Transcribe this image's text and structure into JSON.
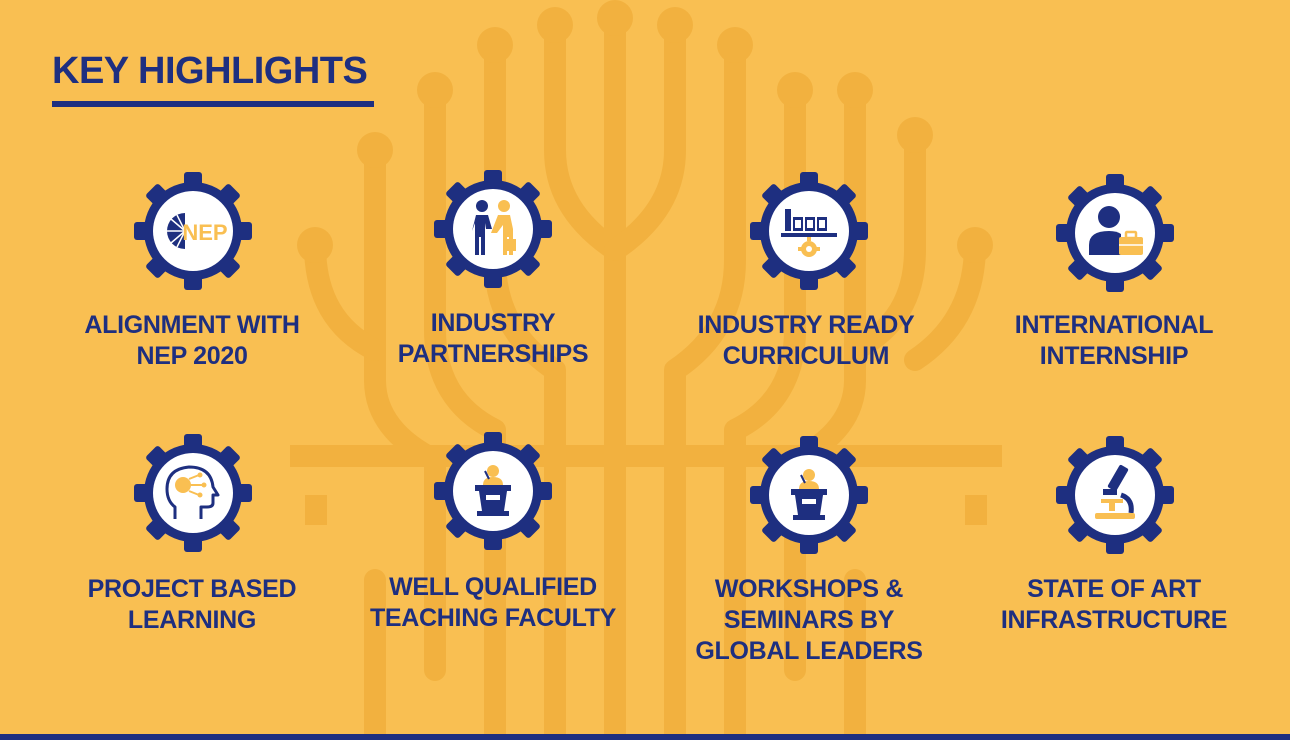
{
  "title": "KEY HIGHLIGHTS",
  "colors": {
    "background": "#f9bf52",
    "primary": "#1e2f80",
    "accent": "#f9bf52",
    "watermark": "#f0b040"
  },
  "highlights": [
    {
      "icon": "nep-logo-icon",
      "logo_text": "NEP",
      "lines": [
        "ALIGNMENT WITH",
        "NEP 2020"
      ]
    },
    {
      "icon": "handshake-icon",
      "lines": [
        "INDUSTRY",
        "PARTNERSHIPS"
      ]
    },
    {
      "icon": "factory-icon",
      "lines": [
        "INDUSTRY READY",
        "CURRICULUM"
      ]
    },
    {
      "icon": "intern-briefcase-icon",
      "lines": [
        "INTERNATIONAL",
        "INTERNSHIP"
      ]
    },
    {
      "icon": "brain-head-icon",
      "lines": [
        "PROJECT BASED",
        "LEARNING"
      ]
    },
    {
      "icon": "podium-speaker-icon",
      "lines": [
        "WELL QUALIFIED",
        "TEACHING FACULTY"
      ]
    },
    {
      "icon": "podium-speaker-icon",
      "lines": [
        "WORKSHOPS &",
        "SEMINARS BY",
        "GLOBAL LEADERS"
      ]
    },
    {
      "icon": "microscope-icon",
      "lines": [
        "STATE OF ART",
        "INFRASTRUCTURE"
      ]
    }
  ]
}
